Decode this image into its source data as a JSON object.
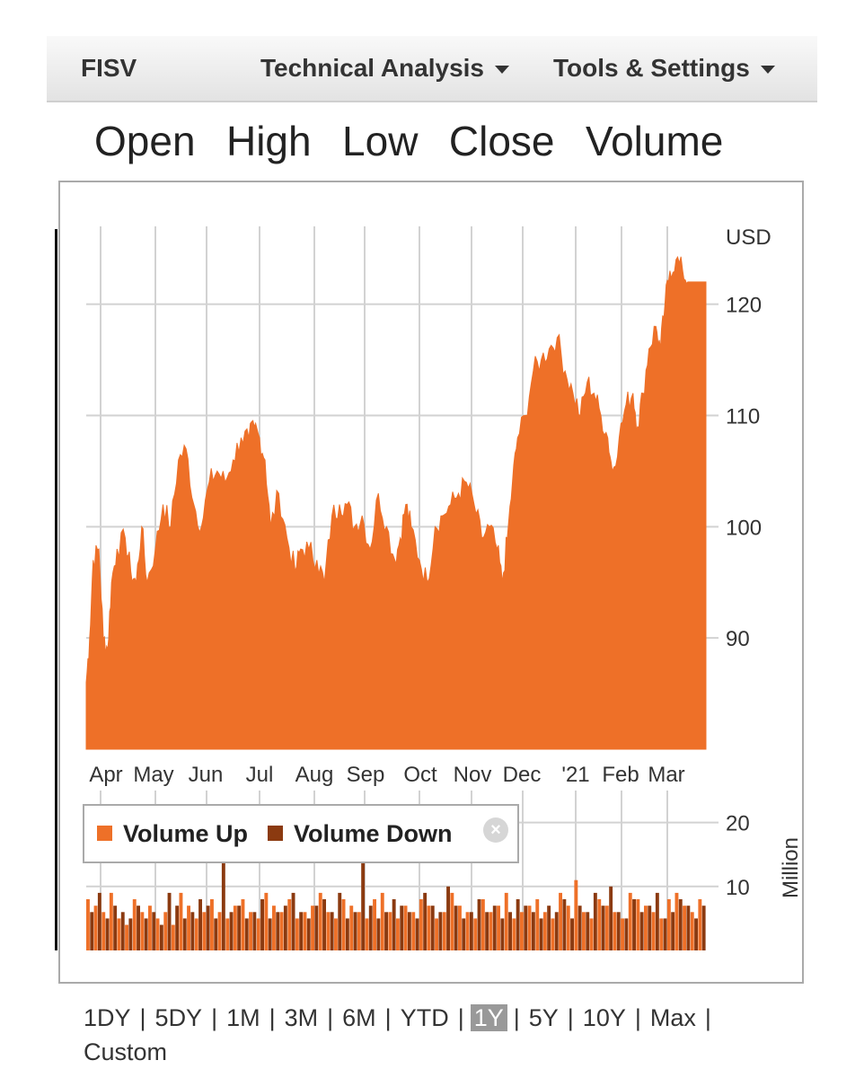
{
  "toolbar": {
    "symbol": "FISV",
    "technical_analysis": "Technical Analysis",
    "tools_settings": "Tools & Settings"
  },
  "series_tabs": [
    "Open",
    "High",
    "Low",
    "Close",
    "Volume"
  ],
  "legend": {
    "volume_up": "Volume Up",
    "volume_down": "Volume Down",
    "close_icon": "×",
    "colors": {
      "volume_up": "#ee7028",
      "volume_down": "#8b3a10"
    }
  },
  "ranges": [
    "1DY",
    "5DY",
    "1M",
    "3M",
    "6M",
    "YTD",
    "1Y",
    "5Y",
    "10Y",
    "Max",
    "Custom"
  ],
  "active_range": "1Y",
  "chart_data": {
    "type": "area",
    "price_unit": "USD",
    "volume_unit": "Million",
    "x_labels": [
      "Apr",
      "May",
      "Jun",
      "Jul",
      "Aug",
      "Sep",
      "Oct",
      "Nov",
      "Dec",
      "'21",
      "Feb",
      "Mar"
    ],
    "price_ticks": [
      90,
      100,
      110,
      120
    ],
    "price_range": [
      80,
      127
    ],
    "volume_ticks": [
      10,
      20
    ],
    "volume_range": [
      0,
      25
    ],
    "color": "#ee7028",
    "price_points": [
      {
        "m": 0.0,
        "v": 86
      },
      {
        "m": 0.06,
        "v": 90
      },
      {
        "m": 0.12,
        "v": 97
      },
      {
        "m": 0.22,
        "v": 98
      },
      {
        "m": 0.3,
        "v": 90
      },
      {
        "m": 0.38,
        "v": 89
      },
      {
        "m": 0.45,
        "v": 95
      },
      {
        "m": 0.55,
        "v": 98
      },
      {
        "m": 0.7,
        "v": 99
      },
      {
        "m": 0.8,
        "v": 96
      },
      {
        "m": 0.9,
        "v": 95
      },
      {
        "m": 1.0,
        "v": 100
      },
      {
        "m": 1.1,
        "v": 95
      },
      {
        "m": 1.25,
        "v": 98
      },
      {
        "m": 1.4,
        "v": 102
      },
      {
        "m": 1.55,
        "v": 100
      },
      {
        "m": 1.7,
        "v": 106
      },
      {
        "m": 1.85,
        "v": 107
      },
      {
        "m": 2.0,
        "v": 102
      },
      {
        "m": 2.15,
        "v": 100
      },
      {
        "m": 2.3,
        "v": 104
      },
      {
        "m": 2.45,
        "v": 105
      },
      {
        "m": 2.6,
        "v": 104
      },
      {
        "m": 2.75,
        "v": 106
      },
      {
        "m": 2.9,
        "v": 108
      },
      {
        "m": 3.05,
        "v": 108
      },
      {
        "m": 3.15,
        "v": 109
      },
      {
        "m": 3.25,
        "v": 108
      },
      {
        "m": 3.35,
        "v": 106
      },
      {
        "m": 3.45,
        "v": 100
      },
      {
        "m": 3.6,
        "v": 103
      },
      {
        "m": 3.75,
        "v": 99
      },
      {
        "m": 3.9,
        "v": 96
      },
      {
        "m": 4.0,
        "v": 98
      },
      {
        "m": 4.15,
        "v": 98
      },
      {
        "m": 4.3,
        "v": 97
      },
      {
        "m": 4.45,
        "v": 95
      },
      {
        "m": 4.6,
        "v": 101
      },
      {
        "m": 4.75,
        "v": 102
      },
      {
        "m": 4.9,
        "v": 102
      },
      {
        "m": 5.05,
        "v": 100
      },
      {
        "m": 5.2,
        "v": 101
      },
      {
        "m": 5.35,
        "v": 98
      },
      {
        "m": 5.5,
        "v": 103
      },
      {
        "m": 5.65,
        "v": 100
      },
      {
        "m": 5.8,
        "v": 97
      },
      {
        "m": 5.9,
        "v": 99
      },
      {
        "m": 6.0,
        "v": 102
      },
      {
        "m": 6.1,
        "v": 100
      },
      {
        "m": 6.25,
        "v": 97
      },
      {
        "m": 6.4,
        "v": 95
      },
      {
        "m": 6.55,
        "v": 100
      },
      {
        "m": 6.7,
        "v": 101
      },
      {
        "m": 6.85,
        "v": 102
      },
      {
        "m": 7.0,
        "v": 103
      },
      {
        "m": 7.15,
        "v": 104
      },
      {
        "m": 7.3,
        "v": 102
      },
      {
        "m": 7.45,
        "v": 99
      },
      {
        "m": 7.6,
        "v": 100
      },
      {
        "m": 7.75,
        "v": 98
      },
      {
        "m": 7.85,
        "v": 95
      },
      {
        "m": 7.95,
        "v": 99
      },
      {
        "m": 8.05,
        "v": 104
      },
      {
        "m": 8.15,
        "v": 108
      },
      {
        "m": 8.3,
        "v": 110
      },
      {
        "m": 8.45,
        "v": 114
      },
      {
        "m": 8.6,
        "v": 115
      },
      {
        "m": 8.75,
        "v": 116
      },
      {
        "m": 8.9,
        "v": 117
      },
      {
        "m": 9.05,
        "v": 114
      },
      {
        "m": 9.2,
        "v": 112
      },
      {
        "m": 9.35,
        "v": 110
      },
      {
        "m": 9.5,
        "v": 113
      },
      {
        "m": 9.65,
        "v": 112
      },
      {
        "m": 9.8,
        "v": 110
      },
      {
        "m": 9.95,
        "v": 108
      },
      {
        "m": 10.05,
        "v": 105
      },
      {
        "m": 10.2,
        "v": 108
      },
      {
        "m": 10.35,
        "v": 111
      },
      {
        "m": 10.5,
        "v": 112
      },
      {
        "m": 10.6,
        "v": 109
      },
      {
        "m": 10.72,
        "v": 112
      },
      {
        "m": 10.85,
        "v": 116
      },
      {
        "m": 11.0,
        "v": 118
      },
      {
        "m": 11.1,
        "v": 116
      },
      {
        "m": 11.2,
        "v": 120
      },
      {
        "m": 11.3,
        "v": 123
      },
      {
        "m": 11.42,
        "v": 124
      },
      {
        "m": 11.55,
        "v": 123
      },
      {
        "m": 11.65,
        "v": 122
      }
    ],
    "volume_up": [
      8,
      7,
      6,
      9,
      5,
      4,
      8,
      6,
      7,
      5,
      6,
      4,
      9,
      7,
      5,
      6,
      8,
      6,
      5,
      7,
      8,
      6,
      5,
      9,
      7,
      6,
      8,
      5,
      6,
      7,
      9,
      6,
      5,
      8,
      7,
      6,
      5,
      8,
      9,
      6,
      5,
      7,
      6,
      8,
      7,
      5,
      6,
      9,
      7,
      6,
      5,
      8,
      6,
      7,
      9,
      5,
      6,
      7,
      8,
      6,
      5,
      9,
      7,
      11,
      6,
      5,
      8,
      7,
      6,
      5,
      9,
      8,
      7,
      6,
      5,
      8,
      9,
      7,
      6,
      8
    ],
    "volume_down": [
      6,
      9,
      5,
      7,
      6,
      5,
      7,
      5,
      6,
      4,
      9,
      7,
      5,
      6,
      8,
      7,
      5,
      18,
      6,
      7,
      5,
      6,
      8,
      5,
      6,
      7,
      9,
      6,
      5,
      7,
      8,
      6,
      9,
      5,
      6,
      18,
      7,
      5,
      6,
      8,
      7,
      6,
      5,
      9,
      7,
      6,
      10,
      7,
      5,
      6,
      8,
      6,
      7,
      5,
      6,
      8,
      7,
      6,
      5,
      7,
      6,
      8,
      5,
      7,
      6,
      9,
      7,
      10,
      6,
      5,
      8,
      6,
      7,
      9,
      5,
      6,
      8,
      7,
      5,
      7
    ]
  }
}
